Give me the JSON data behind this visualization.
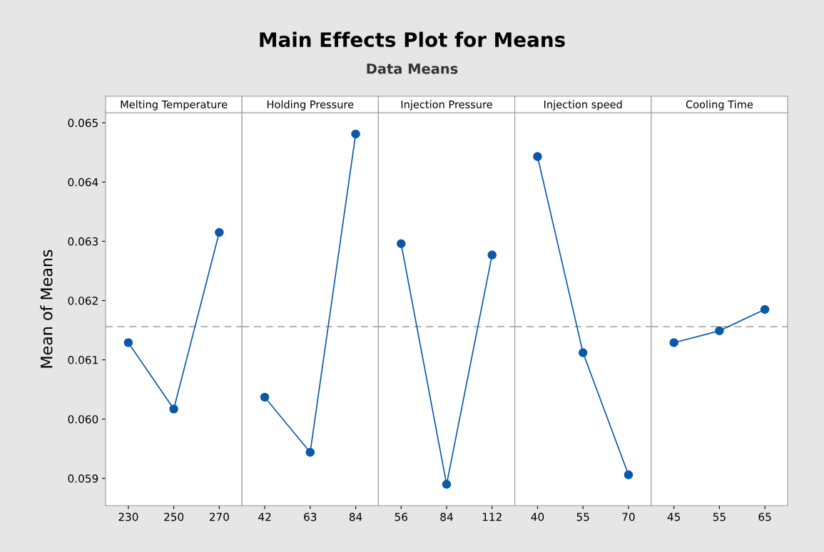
{
  "chart_data": [
    {
      "type": "line",
      "xlabel": "Melting Temperature",
      "ylabel": "Mean of Means",
      "categories": [
        "230",
        "250",
        "270"
      ],
      "series": [
        {
          "color": "#0a58a8",
          "values": [
            0.06129,
            0.06017,
            0.06315
          ]
        }
      ],
      "ylim": [
        0.05854,
        0.06517
      ],
      "yticks": [
        0.059,
        {
          "value": 0.06,
          "label": "0.060"
        },
        0.061,
        0.062,
        0.063,
        0.064,
        0.065
      ],
      "marker": "circle",
      "line_style": "solid",
      "grid": false,
      "legend": false,
      "ref_lines": [
        {
          "axis": "y",
          "value": 0.06156,
          "color": "#9a9a9a",
          "line_style": "dashed"
        }
      ]
    },
    {
      "type": "line",
      "xlabel": "Holding Pressure",
      "categories": [
        "42",
        "63",
        "84"
      ],
      "series": [
        {
          "color": "#0a58a8",
          "values": [
            0.06037,
            0.05944,
            0.06481
          ]
        }
      ],
      "ylim": [
        0.05854,
        0.06517
      ],
      "tick_labels": "x",
      "marker": "circle",
      "line_style": "solid",
      "grid": false,
      "legend": false,
      "ref_lines": [
        {
          "axis": "y",
          "value": 0.06156,
          "color": "#9a9a9a",
          "line_style": "dashed"
        }
      ]
    },
    {
      "type": "line",
      "title": "Main Effects Plot for Means",
      "subtitle": "Data Means",
      "xlabel": "Injection Pressure",
      "categories": [
        "56",
        "84",
        "112"
      ],
      "series": [
        {
          "color": "#0a58a8",
          "values": [
            0.06296,
            0.0589,
            0.06277
          ]
        }
      ],
      "ylim": [
        0.05854,
        0.06517
      ],
      "tick_labels": "x",
      "marker": "circle",
      "line_style": "solid",
      "grid": false,
      "legend": false,
      "ref_lines": [
        {
          "axis": "y",
          "value": 0.06156,
          "color": "#9a9a9a",
          "line_style": "dashed"
        }
      ]
    },
    {
      "type": "line",
      "xlabel": "Injection speed",
      "categories": [
        "40",
        "55",
        "70"
      ],
      "series": [
        {
          "color": "#0a58a8",
          "values": [
            0.06443,
            0.06112,
            0.05906
          ]
        }
      ],
      "ylim": [
        0.05854,
        0.06517
      ],
      "tick_labels": "x",
      "marker": "circle",
      "line_style": "solid",
      "grid": false,
      "legend": false,
      "ref_lines": [
        {
          "axis": "y",
          "value": 0.06156,
          "color": "#9a9a9a",
          "line_style": "dashed"
        }
      ]
    },
    {
      "type": "line",
      "xlabel": "Cooling Time",
      "categories": [
        "45",
        "55",
        "65"
      ],
      "series": [
        {
          "color": "#0a58a8",
          "values": [
            0.06129,
            0.06149,
            0.06185
          ]
        }
      ],
      "ylim": [
        0.05854,
        0.06517
      ],
      "tick_labels": "x",
      "marker": "circle",
      "line_style": "solid",
      "grid": false,
      "legend": false,
      "ref_lines": [
        {
          "axis": "y",
          "value": 0.06156,
          "color": "#9a9a9a",
          "line_style": "dashed"
        }
      ]
    }
  ]
}
